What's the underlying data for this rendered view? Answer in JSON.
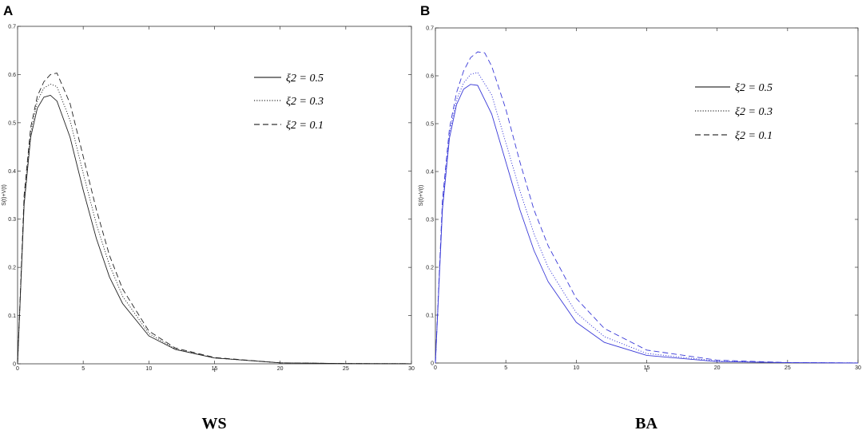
{
  "figure": {
    "panels": [
      {
        "letter": "A",
        "caption": "WS"
      },
      {
        "letter": "B",
        "caption": "BA"
      }
    ]
  },
  "chart_data": [
    {
      "type": "line",
      "panel": "A",
      "caption": "WS",
      "xlabel": "t",
      "ylabel": "S(t)+V(t)",
      "xlim": [
        0,
        30
      ],
      "ylim": [
        0,
        0.7
      ],
      "xticks": [
        0,
        5,
        10,
        15,
        20,
        25,
        30
      ],
      "yticks": [
        0,
        0.1,
        0.2,
        0.3,
        0.4,
        0.5,
        0.6,
        0.7
      ],
      "ytick_labels": [
        "0",
        "0.1",
        "0.2",
        "0.3",
        "0.4",
        "0.5",
        "0.6",
        "0.7"
      ],
      "grid": false,
      "legend_position": "top-right",
      "series": [
        {
          "name": "ξ2 = 0.5",
          "style": "solid",
          "color": "#222222",
          "x": [
            0,
            0.5,
            1,
            1.5,
            2,
            2.5,
            3,
            4,
            5,
            6,
            7,
            8,
            10,
            12,
            15,
            20,
            25,
            30
          ],
          "y": [
            0,
            0.33,
            0.47,
            0.53,
            0.553,
            0.557,
            0.545,
            0.47,
            0.36,
            0.26,
            0.18,
            0.125,
            0.058,
            0.03,
            0.012,
            0.002,
            0.0005,
            0.0002
          ]
        },
        {
          "name": "ξ2 = 0.3",
          "style": "dotted",
          "color": "#222222",
          "x": [
            0,
            0.5,
            1,
            1.5,
            2,
            2.5,
            3,
            4,
            5,
            6,
            7,
            8,
            10,
            12,
            15,
            20,
            25,
            30
          ],
          "y": [
            0,
            0.34,
            0.48,
            0.545,
            0.572,
            0.58,
            0.575,
            0.505,
            0.395,
            0.29,
            0.205,
            0.14,
            0.063,
            0.031,
            0.012,
            0.002,
            0.0005,
            0.0002
          ]
        },
        {
          "name": "ξ2 = 0.1",
          "style": "dashed",
          "color": "#222222",
          "x": [
            0,
            0.5,
            1,
            1.5,
            2,
            2.5,
            3,
            4,
            5,
            6,
            7,
            8,
            10,
            12,
            15,
            20,
            25,
            30
          ],
          "y": [
            0,
            0.35,
            0.49,
            0.555,
            0.585,
            0.6,
            0.603,
            0.54,
            0.43,
            0.32,
            0.225,
            0.155,
            0.068,
            0.033,
            0.013,
            0.002,
            0.0005,
            0.0002
          ]
        }
      ]
    },
    {
      "type": "line",
      "panel": "B",
      "caption": "BA",
      "xlabel": "t",
      "ylabel": "S(t)+V(t)",
      "xlim": [
        0,
        30
      ],
      "ylim": [
        0,
        0.7
      ],
      "xticks": [
        0,
        5,
        10,
        15,
        20,
        25,
        30
      ],
      "yticks": [
        0,
        0.1,
        0.2,
        0.3,
        0.4,
        0.5,
        0.6,
        0.7
      ],
      "ytick_labels": [
        "0",
        "0.1",
        "0.2",
        "0.3",
        "0.4",
        "0.5",
        "0.6",
        "0.7"
      ],
      "grid": false,
      "legend_position": "top-right",
      "series": [
        {
          "name": "ξ2 = 0.5",
          "style": "solid",
          "color": "#3a3ad8",
          "x": [
            0,
            0.5,
            1,
            1.5,
            2,
            2.5,
            3,
            4,
            5,
            6,
            7,
            8,
            10,
            12,
            15,
            20,
            25,
            30
          ],
          "y": [
            0,
            0.32,
            0.47,
            0.54,
            0.572,
            0.582,
            0.58,
            0.52,
            0.42,
            0.32,
            0.235,
            0.17,
            0.085,
            0.043,
            0.016,
            0.003,
            0.0006,
            0.0002
          ]
        },
        {
          "name": "ξ2 = 0.3",
          "style": "dotted",
          "color": "#3a3ad8",
          "x": [
            0,
            0.5,
            1,
            1.5,
            2,
            2.5,
            3,
            4,
            5,
            6,
            7,
            8,
            10,
            12,
            15,
            20,
            25,
            30
          ],
          "y": [
            0,
            0.33,
            0.48,
            0.55,
            0.585,
            0.603,
            0.607,
            0.56,
            0.46,
            0.36,
            0.27,
            0.2,
            0.105,
            0.055,
            0.02,
            0.004,
            0.0008,
            0.0002
          ]
        },
        {
          "name": "ξ2 = 0.1",
          "style": "dashed",
          "color": "#3a3ad8",
          "x": [
            0,
            0.5,
            1,
            1.5,
            2,
            2.5,
            3,
            3.5,
            4,
            5,
            6,
            7,
            8,
            10,
            12,
            15,
            20,
            25,
            30
          ],
          "y": [
            0,
            0.34,
            0.49,
            0.565,
            0.61,
            0.638,
            0.65,
            0.648,
            0.62,
            0.53,
            0.42,
            0.32,
            0.245,
            0.135,
            0.072,
            0.027,
            0.006,
            0.001,
            0.0002
          ]
        }
      ]
    }
  ]
}
